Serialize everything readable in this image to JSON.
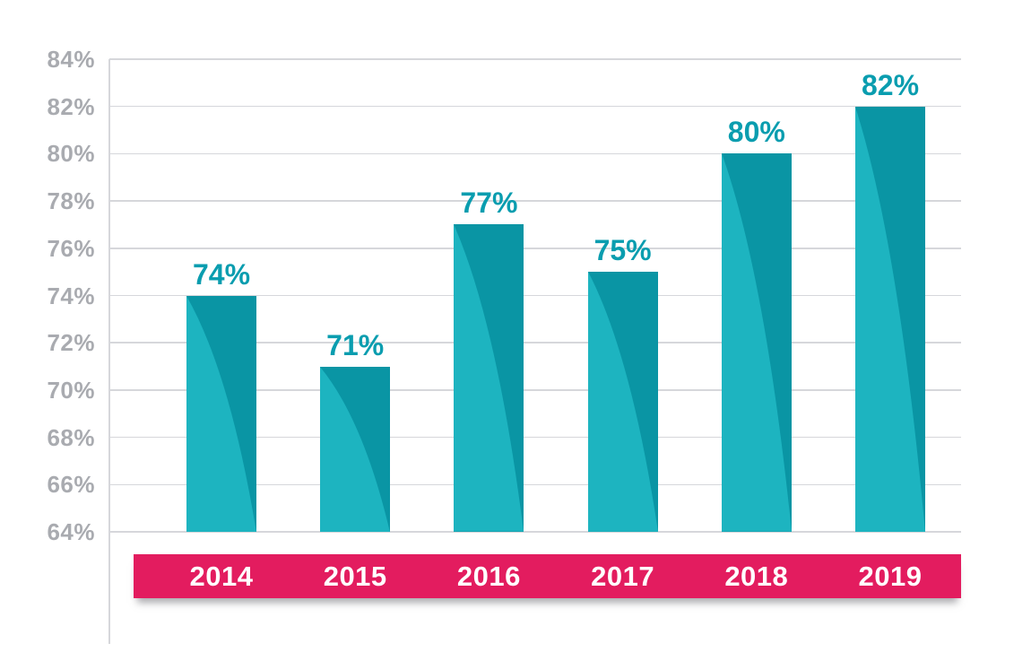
{
  "chart_data": {
    "type": "bar",
    "categories": [
      "2014",
      "2015",
      "2016",
      "2017",
      "2018",
      "2019"
    ],
    "values": [
      74,
      71,
      77,
      75,
      80,
      82
    ],
    "value_labels": [
      "74%",
      "71%",
      "77%",
      "75%",
      "80%",
      "82%"
    ],
    "y_ticks": [
      "84%",
      "82%",
      "80%",
      "78%",
      "76%",
      "74%",
      "72%",
      "70%",
      "68%",
      "66%",
      "64%"
    ],
    "y_tick_values": [
      84,
      82,
      80,
      78,
      76,
      74,
      72,
      70,
      68,
      66,
      64
    ],
    "ylim": [
      64,
      84
    ],
    "title": "",
    "xlabel": "",
    "ylabel": "",
    "grid": true,
    "legend": false
  },
  "colors": {
    "background": "#ffffff",
    "bar_dark": "#0a95a4",
    "bar_light": "#1db4c0",
    "value_label": "#0a9daf",
    "tick_label": "#a9abb0",
    "gridline": "#d6d7db",
    "band": "#e31c5f",
    "year_text": "#ffffff"
  }
}
